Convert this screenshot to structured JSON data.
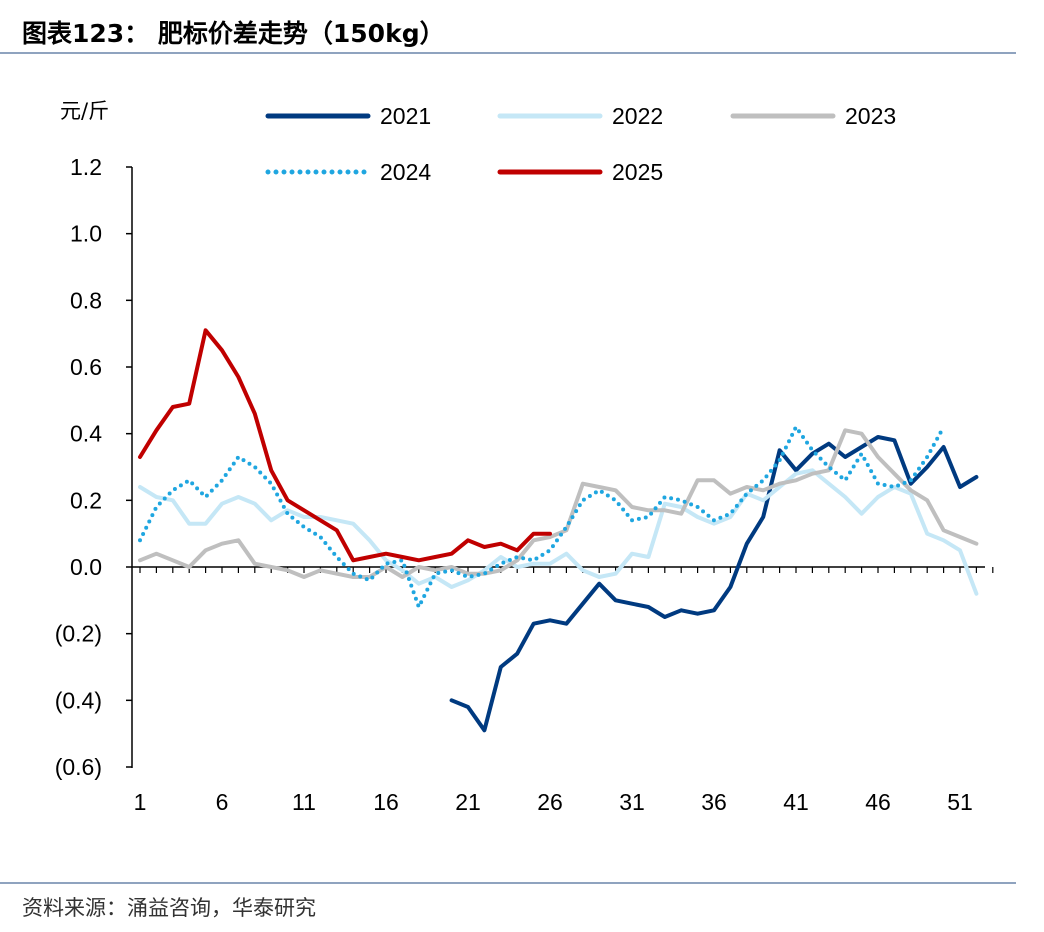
{
  "header": {
    "title": "图表123：  肥标价差走势（150kg）"
  },
  "footer": {
    "source": "资料来源：涌益咨询，华泰研究"
  },
  "chart_data": {
    "type": "line",
    "title": "肥标价差走势（150kg）",
    "ylabel": "元/斤",
    "xlabel": "",
    "ylim": [
      -0.6,
      1.2
    ],
    "xlim": [
      1,
      53
    ],
    "y_ticks": [
      1.2,
      1.0,
      0.8,
      0.6,
      0.4,
      0.2,
      0.0,
      -0.2,
      -0.4,
      -0.6
    ],
    "y_tick_labels": [
      "1.2",
      "1.0",
      "0.8",
      "0.6",
      "0.4",
      "0.2",
      "0.0",
      "(0.2)",
      "(0.4)",
      "(0.6)"
    ],
    "x_ticks": [
      1,
      6,
      11,
      16,
      21,
      26,
      31,
      36,
      41,
      46,
      51
    ],
    "x_tick_labels": [
      "1",
      "6",
      "11",
      "16",
      "21",
      "26",
      "31",
      "36",
      "41",
      "46",
      "51"
    ],
    "legend_position": "top",
    "series": [
      {
        "name": "2021",
        "color": "#003a80",
        "style": "solid",
        "start_week": 20,
        "values": [
          -0.4,
          -0.42,
          -0.49,
          -0.3,
          -0.26,
          -0.17,
          -0.16,
          -0.17,
          -0.11,
          -0.05,
          -0.1,
          -0.11,
          -0.12,
          -0.15,
          -0.13,
          -0.14,
          -0.13,
          -0.06,
          0.07,
          0.15,
          0.35,
          0.29,
          0.34,
          0.37,
          0.33,
          0.36,
          0.39,
          0.38,
          0.25,
          0.3,
          0.36,
          0.24,
          0.27
        ]
      },
      {
        "name": "2022",
        "color": "#c5e7f6",
        "style": "solid",
        "start_week": 1,
        "values": [
          0.24,
          0.21,
          0.2,
          0.13,
          0.13,
          0.19,
          0.21,
          0.19,
          0.14,
          0.17,
          0.15,
          0.15,
          0.14,
          0.13,
          0.08,
          0.02,
          -0.01,
          -0.05,
          -0.03,
          -0.06,
          -0.04,
          -0.01,
          0.03,
          0.0,
          0.01,
          0.01,
          0.04,
          -0.01,
          -0.03,
          -0.02,
          0.04,
          0.03,
          0.19,
          0.18,
          0.15,
          0.13,
          0.15,
          0.22,
          0.2,
          0.24,
          0.28,
          0.29,
          0.25,
          0.21,
          0.16,
          0.21,
          0.24,
          0.22,
          0.1,
          0.08,
          0.05,
          -0.08
        ]
      },
      {
        "name": "2023",
        "color": "#bfbfbf",
        "style": "solid",
        "start_week": 1,
        "values": [
          0.02,
          0.04,
          0.02,
          0.0,
          0.05,
          0.07,
          0.08,
          0.01,
          0.0,
          -0.01,
          -0.03,
          -0.01,
          -0.02,
          -0.03,
          -0.03,
          0.0,
          -0.03,
          0.0,
          -0.01,
          0.0,
          -0.02,
          -0.02,
          -0.01,
          0.02,
          0.08,
          0.09,
          0.11,
          0.25,
          0.24,
          0.23,
          0.18,
          0.17,
          0.17,
          0.16,
          0.26,
          0.26,
          0.22,
          0.24,
          0.23,
          0.25,
          0.26,
          0.28,
          0.29,
          0.41,
          0.4,
          0.33,
          0.28,
          0.23,
          0.2,
          0.11,
          0.09,
          0.07
        ]
      },
      {
        "name": "2024",
        "color": "#1fa6e0",
        "style": "dotted",
        "start_week": 1,
        "values": [
          0.08,
          0.18,
          0.23,
          0.26,
          0.21,
          0.26,
          0.33,
          0.3,
          0.25,
          0.16,
          0.12,
          0.09,
          0.03,
          -0.02,
          -0.04,
          0.01,
          0.02,
          -0.12,
          -0.02,
          -0.01,
          -0.03,
          -0.02,
          0.01,
          0.03,
          0.02,
          0.05,
          0.12,
          0.2,
          0.23,
          0.2,
          0.14,
          0.15,
          0.21,
          0.2,
          0.18,
          0.14,
          0.16,
          0.22,
          0.26,
          0.32,
          0.42,
          0.35,
          0.3,
          0.26,
          0.34,
          0.25,
          0.24,
          0.26,
          0.33,
          0.42
        ]
      },
      {
        "name": "2025",
        "color": "#c00000",
        "style": "solid",
        "start_week": 1,
        "values": [
          0.33,
          0.41,
          0.48,
          0.49,
          0.71,
          0.65,
          0.57,
          0.46,
          0.29,
          0.2,
          0.17,
          0.14,
          0.11,
          0.02,
          0.03,
          0.04,
          0.03,
          0.02,
          0.03,
          0.04,
          0.08,
          0.06,
          0.07,
          0.05,
          0.1,
          0.1
        ]
      }
    ]
  }
}
